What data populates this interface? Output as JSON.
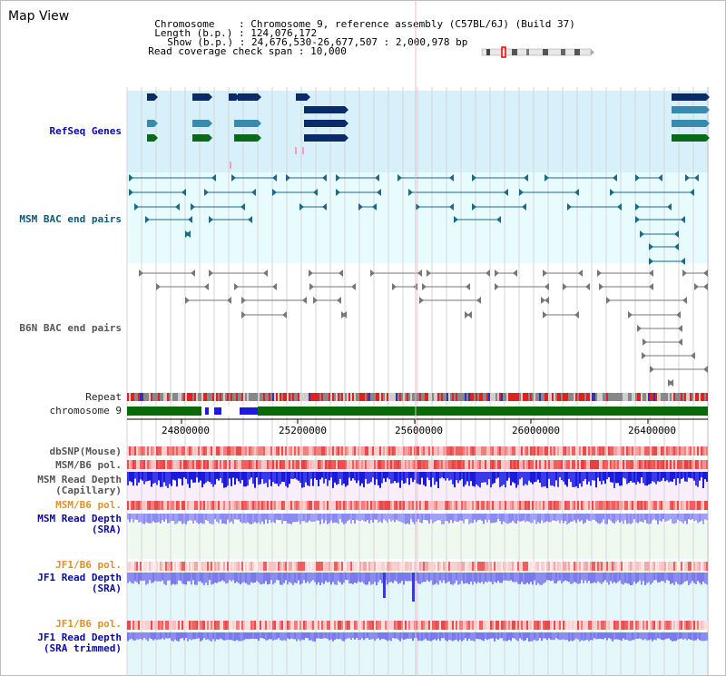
{
  "title": "Map View",
  "info": {
    "chromosome_key": "Chromosome",
    "chromosome_val": "Chromosome 9, reference assembly (C57BL/6J) (Build 37)",
    "length_key": "Length (b.p.)",
    "length_val": "124,076,172",
    "show_key": "Show (b.p.)",
    "show_val": "24,676,530-26,677,507 : 2,000,978 bp",
    "coverage_key": "Read coverage check span",
    "coverage_val": "10,000"
  },
  "tracks": {
    "refseq": "RefSeq Genes",
    "msm_bac": "MSM BAC end pairs",
    "b6n_bac": "B6N BAC end pairs",
    "repeat": "Repeat",
    "chromosome": "chromosome 9",
    "dbsnp": "dbSNP(Mouse)",
    "msm_b6_pol_1": "MSM/B6 pol.",
    "msm_depth_cap_1": "MSM Read Depth",
    "msm_depth_cap_2": "(Capillary)",
    "msm_b6_pol_2": "MSM/B6 pol.",
    "msm_depth_sra_1": "MSM Read Depth",
    "msm_depth_sra_2": "(SRA)",
    "jf1_b6_pol_1": "JF1/B6 pol.",
    "jf1_depth_sra_1": "JF1 Read Depth",
    "jf1_depth_sra_2": "(SRA)",
    "jf1_b6_pol_2": "JF1/B6 pol.",
    "jf1_depth_trim_1": "JF1 Read Depth",
    "jf1_depth_trim_2": "(SRA trimmed)"
  },
  "axis": {
    "ticks": [
      "24800000",
      "25200000",
      "25600000",
      "26000000",
      "26400000"
    ]
  },
  "colors": {
    "refseq_bg": "#d8f0fa",
    "msm_bg": "#e8fbff",
    "gene_dark": "#0a2a6a",
    "gene_mid": "#3a8ab0",
    "gene_green": "#0a6a1a",
    "chromosome_green": "#0a6a0a",
    "depth_blue": "#1a1ad8",
    "depth_light": "#8c8cf0"
  }
}
